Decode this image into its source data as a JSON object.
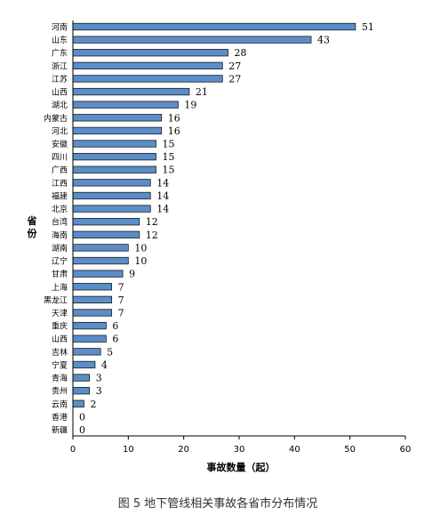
{
  "chart_data": {
    "type": "bar",
    "orientation": "horizontal",
    "categories": [
      "河南",
      "山东",
      "广东",
      "浙江",
      "江苏",
      "山西",
      "湖北",
      "内蒙古",
      "河北",
      "安徽",
      "四川",
      "广西",
      "江西",
      "福建",
      "北京",
      "台湾",
      "海南",
      "湖南",
      "辽宁",
      "甘肃",
      "上海",
      "黑龙江",
      "天津",
      "重庆",
      "山西",
      "吉林",
      "宁夏",
      "青海",
      "贵州",
      "云南",
      "香港",
      "新疆"
    ],
    "values": [
      51,
      43,
      28,
      27,
      27,
      21,
      19,
      16,
      16,
      15,
      15,
      15,
      14,
      14,
      14,
      12,
      12,
      10,
      10,
      9,
      7,
      7,
      7,
      6,
      6,
      5,
      4,
      3,
      3,
      2,
      0,
      0
    ],
    "xlabel": "事故数量（起）",
    "ylabel": "省份",
    "xlim": [
      0,
      60
    ],
    "xticks": [
      "0",
      "10",
      "20",
      "30",
      "40",
      "50",
      "60"
    ],
    "bar_color": "#5b8ec9",
    "bar_edge_color": "#1a1a1a",
    "grid": false
  },
  "caption": "图 5 地下管线相关事故各省市分布情况"
}
